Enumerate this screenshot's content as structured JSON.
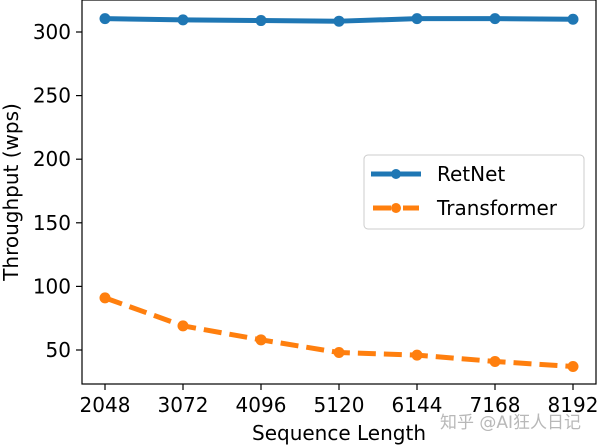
{
  "chart_data": {
    "type": "line",
    "title": "",
    "xlabel": "Sequence Length",
    "ylabel": "Throughput (wps)",
    "x": [
      2048,
      3072,
      4096,
      5120,
      6144,
      7168,
      8192
    ],
    "x_tick_labels": [
      "2048",
      "3072",
      "4096",
      "5120",
      "6144",
      "7168",
      "8192"
    ],
    "y_ticks": [
      50,
      100,
      150,
      200,
      250,
      300
    ],
    "y_tick_labels": [
      "50",
      "100",
      "150",
      "200",
      "250",
      "300"
    ],
    "ylim": [
      25,
      325
    ],
    "grid": false,
    "legend_position": "center right",
    "series": [
      {
        "name": "RetNet",
        "color": "#1f77b4",
        "linestyle": "solid",
        "marker": "circle",
        "values": [
          310.5,
          309.5,
          309,
          308.5,
          310.5,
          310.5,
          310
        ]
      },
      {
        "name": "Transformer",
        "color": "#ff7f0e",
        "linestyle": "dashed",
        "marker": "circle",
        "values": [
          91,
          69,
          58,
          48,
          46,
          41,
          37
        ]
      }
    ]
  },
  "legend": {
    "items": [
      {
        "label": "RetNet"
      },
      {
        "label": "Transformer"
      }
    ]
  },
  "watermark": "知乎 @AI狂人日记"
}
